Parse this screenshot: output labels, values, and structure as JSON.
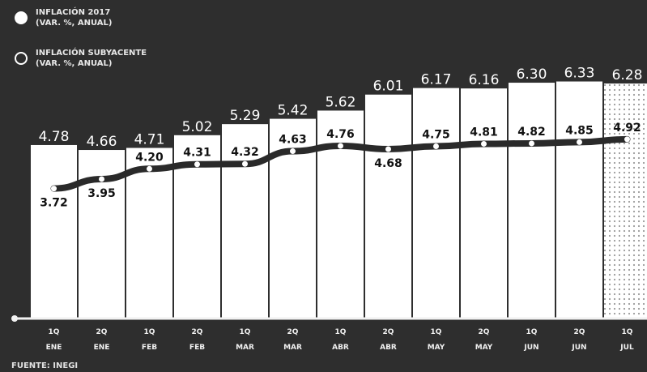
{
  "legend": {
    "inflation_line1": "INFLACIÓN 2017",
    "inflation_line2": "(VAR. %, ANUAL)",
    "core_line1": "INFLACIÓN SUBYACENTE",
    "core_line2": "(VAR. %, ANUAL)"
  },
  "source": "FUENTE: INEGI",
  "colors": {
    "background": "#2e2e2e",
    "bar": "#ffffff",
    "line": "#2a2a2a",
    "baseline": "#f2f2f2"
  },
  "chart_data": {
    "type": "bar",
    "categories": [
      [
        "1Q",
        "ENE"
      ],
      [
        "2Q",
        "ENE"
      ],
      [
        "1Q",
        "FEB"
      ],
      [
        "2Q",
        "FEB"
      ],
      [
        "1Q",
        "MAR"
      ],
      [
        "2Q",
        "MAR"
      ],
      [
        "1Q",
        "ABR"
      ],
      [
        "2Q",
        "ABR"
      ],
      [
        "1Q",
        "MAY"
      ],
      [
        "2Q",
        "MAY"
      ],
      [
        "1Q",
        "JUN"
      ],
      [
        "2Q",
        "JUN"
      ],
      [
        "1Q",
        "JUL"
      ]
    ],
    "series": [
      {
        "name": "INFLACIÓN 2017 (VAR. %, ANUAL)",
        "type": "bar",
        "values": [
          4.78,
          4.66,
          4.71,
          5.02,
          5.29,
          5.42,
          5.62,
          6.01,
          6.17,
          6.16,
          6.3,
          6.33,
          6.28
        ],
        "labels": [
          "4.78",
          "4.66",
          "4.71",
          "5.02",
          "5.29",
          "5.42",
          "5.62",
          "6.01",
          "6.17",
          "6.16",
          "6.30",
          "6.33",
          "6.28"
        ]
      },
      {
        "name": "INFLACIÓN SUBYACENTE (VAR. %, ANUAL)",
        "type": "line",
        "values": [
          3.72,
          3.95,
          4.2,
          4.31,
          4.32,
          4.63,
          4.76,
          4.68,
          4.75,
          4.81,
          4.82,
          4.85,
          4.92
        ],
        "labels": [
          "3.72",
          "3.95",
          "4.20",
          "4.31",
          "4.32",
          "4.63",
          "4.76",
          "4.68",
          "4.75",
          "4.81",
          "4.82",
          "4.85",
          "4.92"
        ]
      }
    ],
    "last_bar_style": "dotted",
    "legend_position": "top-left"
  }
}
